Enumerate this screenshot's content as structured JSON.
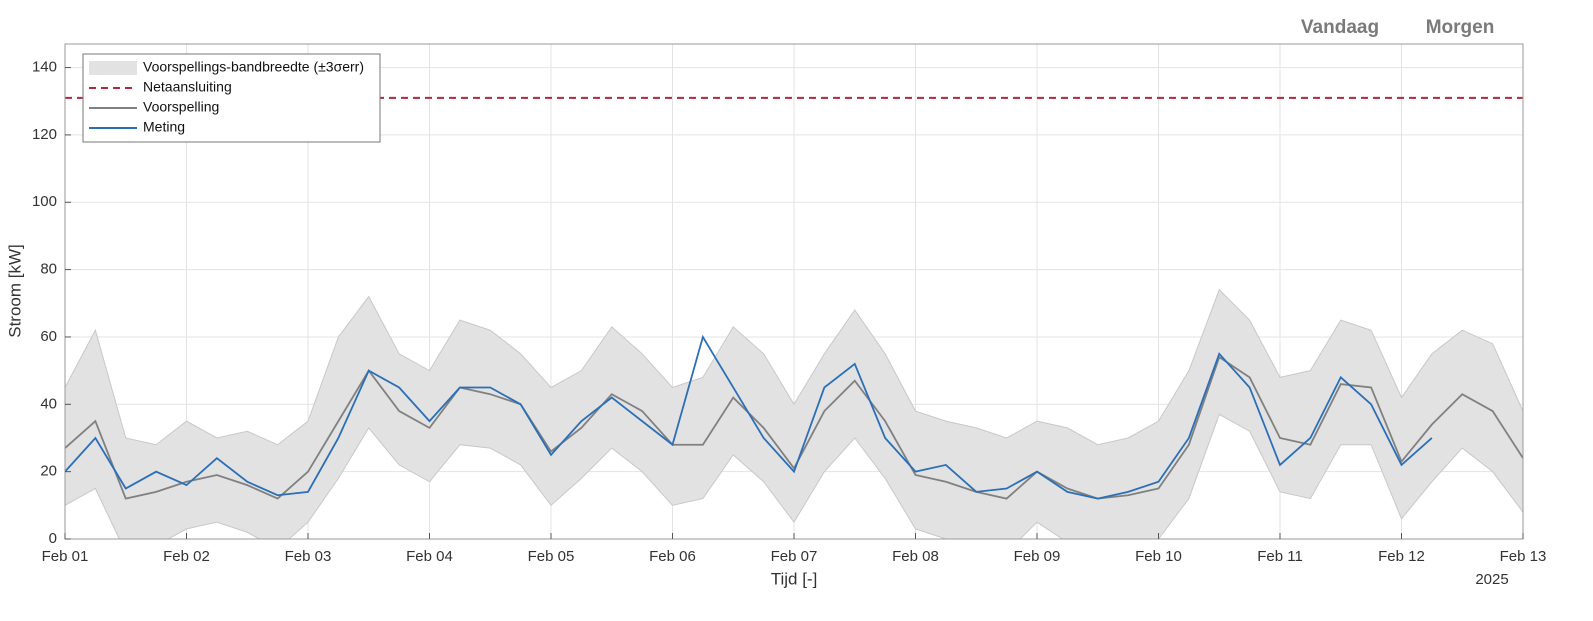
{
  "chart_data": {
    "type": "line",
    "x_label": "Tijd [-]",
    "y_label": "Stroom [kW]",
    "annotations": [
      "Vandaag",
      "Morgen",
      "2025"
    ],
    "x": [
      0,
      0.25,
      0.5,
      0.75,
      1,
      1.25,
      1.5,
      1.75,
      2,
      2.25,
      2.5,
      2.75,
      3,
      3.25,
      3.5,
      3.75,
      4,
      4.25,
      4.5,
      4.75,
      5,
      5.25,
      5.5,
      5.75,
      6,
      6.25,
      6.5,
      6.75,
      7,
      7.25,
      7.5,
      7.75,
      8,
      8.25,
      8.5,
      8.75,
      9,
      9.25,
      9.5,
      9.75,
      10,
      10.25,
      10.5,
      10.75,
      11,
      11.25,
      11.5,
      11.75,
      12
    ],
    "band": {
      "name": "Voorspellings-bandbreedte (±3σerr)",
      "color": "#e2e2e2",
      "lower": [
        10,
        15,
        -4,
        -2,
        3,
        5,
        2,
        -3,
        5,
        18,
        33,
        22,
        17,
        28,
        27,
        22,
        10,
        18,
        27,
        20,
        10,
        12,
        25,
        17,
        5,
        20,
        30,
        18,
        3,
        0,
        -3,
        -4,
        5,
        -1,
        -3,
        -2,
        0,
        12,
        37,
        32,
        14,
        12,
        28,
        28,
        6,
        17,
        27,
        20,
        8
      ],
      "upper": [
        45,
        62,
        30,
        28,
        35,
        30,
        32,
        28,
        35,
        60,
        72,
        55,
        50,
        65,
        62,
        55,
        45,
        50,
        63,
        55,
        45,
        48,
        63,
        55,
        40,
        55,
        68,
        55,
        38,
        35,
        33,
        30,
        35,
        33,
        28,
        30,
        35,
        50,
        74,
        65,
        48,
        50,
        65,
        62,
        42,
        55,
        62,
        58,
        38
      ]
    },
    "hline": {
      "name": "Netaansluiting",
      "color": "#b0283c",
      "value": 131
    },
    "series": [
      {
        "name": "Voorspelling",
        "color": "#808080",
        "values": [
          27,
          35,
          12,
          14,
          17,
          19,
          16,
          12,
          20,
          35,
          50,
          38,
          33,
          45,
          43,
          40,
          26,
          33,
          43,
          38,
          28,
          28,
          42,
          33,
          21,
          38,
          47,
          35,
          19,
          17,
          14,
          12,
          20,
          15,
          12,
          13,
          15,
          28,
          54,
          48,
          30,
          28,
          46,
          45,
          23,
          34,
          43,
          38,
          24
        ]
      },
      {
        "name": "Meting",
        "color": "#2a6fb8",
        "values": [
          20,
          30,
          15,
          20,
          16,
          24,
          17,
          13,
          14,
          30,
          50,
          45,
          35,
          45,
          45,
          40,
          25,
          35,
          42,
          35,
          28,
          60,
          45,
          30,
          20,
          45,
          52,
          30,
          20,
          22,
          14,
          15,
          20,
          14,
          12,
          14,
          17,
          30,
          55,
          45,
          22,
          30,
          48,
          40,
          22,
          30,
          null,
          null,
          null
        ]
      }
    ],
    "xlim": [
      0,
      12
    ],
    "xticks": [
      {
        "value": 0,
        "label": "Feb 01"
      },
      {
        "value": 1,
        "label": "Feb 02"
      },
      {
        "value": 2,
        "label": "Feb 03"
      },
      {
        "value": 3,
        "label": "Feb 04"
      },
      {
        "value": 4,
        "label": "Feb 05"
      },
      {
        "value": 5,
        "label": "Feb 06"
      },
      {
        "value": 6,
        "label": "Feb 07"
      },
      {
        "value": 7,
        "label": "Feb 08"
      },
      {
        "value": 8,
        "label": "Feb 09"
      },
      {
        "value": 9,
        "label": "Feb 10"
      },
      {
        "value": 10,
        "label": "Feb 11"
      },
      {
        "value": 11,
        "label": "Feb 12"
      },
      {
        "value": 12,
        "label": "Feb 13"
      }
    ],
    "ylim": [
      0,
      147
    ],
    "yticks": [
      0,
      20,
      40,
      60,
      80,
      100,
      120,
      140
    ],
    "grid": true,
    "legend": "upper left"
  }
}
